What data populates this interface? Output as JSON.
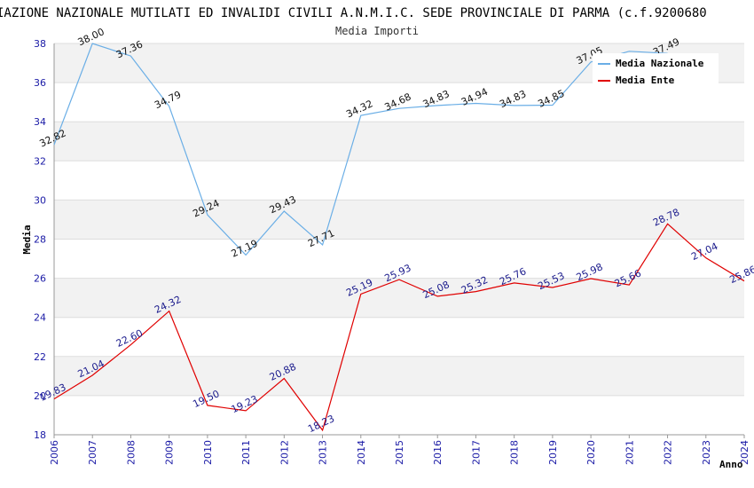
{
  "chart_data": {
    "type": "line",
    "title": "IAZIONE NAZIONALE MUTILATI ED INVALIDI CIVILI A.N.M.I.C. SEDE PROVINCIALE DI PARMA (c.f.9200680",
    "subtitle": "Media Importi",
    "xlabel": "Anno",
    "ylabel": "Media",
    "ylim": [
      18,
      38
    ],
    "yticks": [
      18,
      20,
      22,
      24,
      26,
      28,
      30,
      32,
      34,
      36,
      38
    ],
    "categories": [
      "2006",
      "2007",
      "2008",
      "2009",
      "2010",
      "2011",
      "2012",
      "2013",
      "2014",
      "2015",
      "2016",
      "2017",
      "2018",
      "2019",
      "2020",
      "2021",
      "2022",
      "2023",
      "2024"
    ],
    "series": [
      {
        "name": "Media Nazionale",
        "color": "#6aaee6",
        "values": [
          32.82,
          38.0,
          37.36,
          34.79,
          29.24,
          27.19,
          29.43,
          27.71,
          34.32,
          34.68,
          34.83,
          34.94,
          34.83,
          34.85,
          37.05,
          37.6,
          37.49,
          null,
          null
        ],
        "labels": [
          "32.82",
          "38.00",
          "37.36",
          "34.79",
          "29.24",
          "27.19",
          "29.43",
          "27.71",
          "34.32",
          "34.68",
          "34.83",
          "34.94",
          "34.83",
          "34.85",
          "37.05",
          "",
          "37.49",
          "",
          ""
        ]
      },
      {
        "name": "Media Ente",
        "color": "#e00000",
        "values": [
          19.83,
          21.04,
          22.6,
          24.32,
          19.5,
          19.23,
          20.88,
          18.23,
          25.19,
          25.93,
          25.08,
          25.32,
          25.76,
          25.53,
          25.98,
          25.66,
          28.78,
          27.04,
          25.86
        ],
        "labels": [
          "19.83",
          "21.04",
          "22.60",
          "24.32",
          "19.50",
          "19.23",
          "20.88",
          "18.23",
          "25.19",
          "25.93",
          "25.08",
          "25.32",
          "25.76",
          "25.53",
          "25.98",
          "25.66",
          "28.78",
          "27.04",
          "25.86"
        ]
      }
    ],
    "grid": true,
    "legend_position": "top-right"
  }
}
